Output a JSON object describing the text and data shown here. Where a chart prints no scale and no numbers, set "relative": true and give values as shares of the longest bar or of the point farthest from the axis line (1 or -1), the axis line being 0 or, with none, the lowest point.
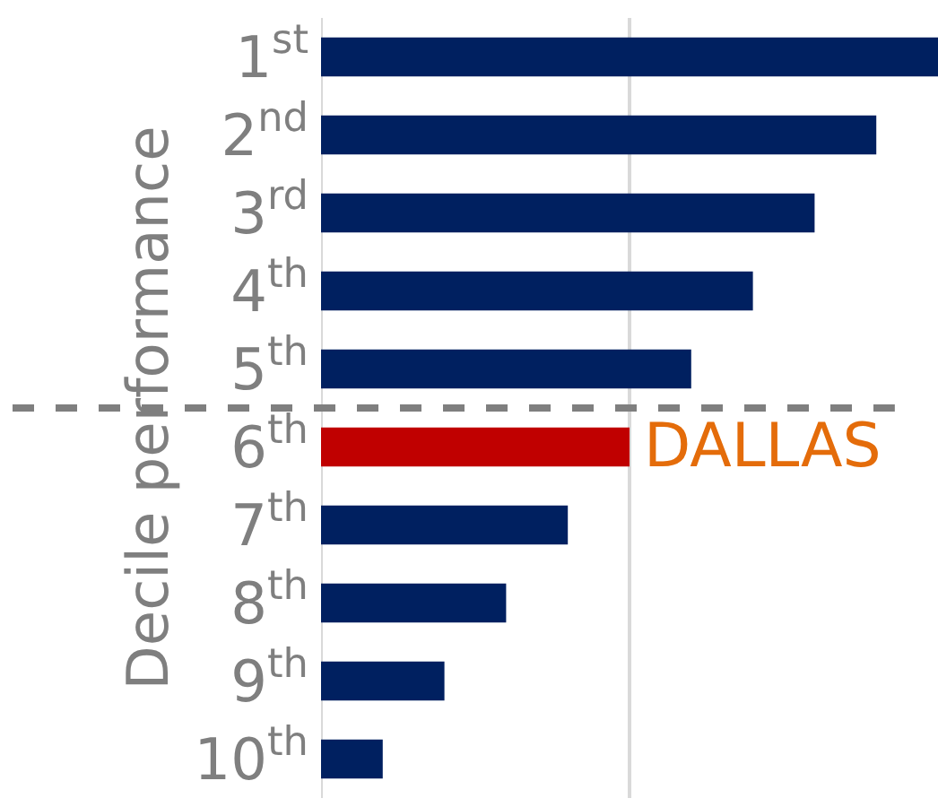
{
  "chart_data": {
    "type": "bar",
    "orientation": "horizontal",
    "relative": true,
    "ylabel": "Decile performance",
    "categories": [
      "1$^{st}$",
      "2$^{nd}$",
      "3$^{rd}$",
      "4$^{th}$",
      "5$^{th}$",
      "6$^{th}$",
      "7$^{th}$",
      "8$^{th}$",
      "9$^{th}$",
      "10$^{th}$"
    ],
    "values": [
      1,
      0.9,
      0.8,
      0.7,
      0.6,
      0.5,
      0.4,
      0.3,
      0.2,
      0.1
    ],
    "colors": [
      "#002060",
      "#002060",
      "#002060",
      "#002060",
      "#002060",
      "#c00000",
      "#002060",
      "#002060",
      "#002060",
      "#002060"
    ],
    "annotations": [
      {
        "text": "DALLAS",
        "x": 0.5,
        "y": "6$^{th}$"
      }
    ],
    "ref_lines": [
      {
        "axis": "x",
        "value": 0.5,
        "color": "#d9d9d9",
        "line_style": "solid"
      }
    ]
  }
}
